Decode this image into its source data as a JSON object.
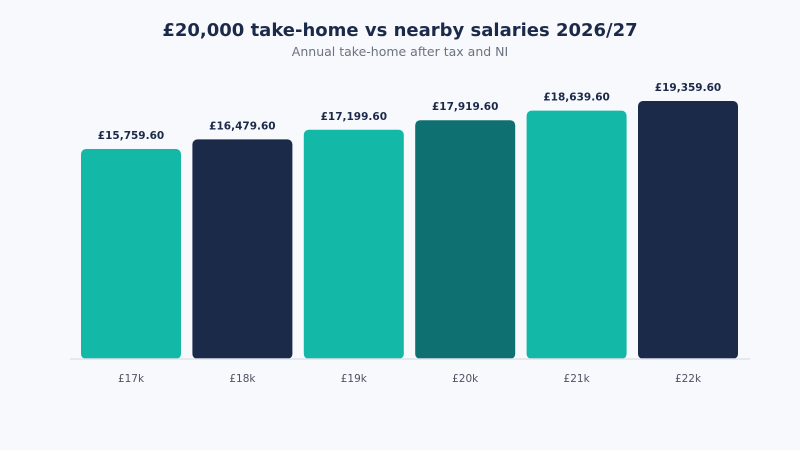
{
  "chart_data": {
    "type": "bar",
    "title": "£20,000 take-home vs nearby salaries 2026/27",
    "subtitle": "Annual take-home after tax and NI",
    "xlabel": "",
    "ylabel": "",
    "categories": [
      "£17k",
      "£18k",
      "£19k",
      "£20k",
      "£21k",
      "£22k"
    ],
    "values": [
      15759.6,
      16479.6,
      17199.6,
      17919.6,
      18639.6,
      19359.6
    ],
    "data_labels": [
      "£15,759.60",
      "£16,479.60",
      "£17,199.60",
      "£17,919.60",
      "£18,639.60",
      "£19,359.60"
    ],
    "bar_colors": [
      "#14b8a6",
      "#1c2a4a",
      "#14b8a6",
      "#0e7070",
      "#14b8a6",
      "#1c2a4a"
    ],
    "ylim": [
      0,
      19359.6
    ],
    "grid": false,
    "legend": "none",
    "highlight_category": "£20k"
  }
}
